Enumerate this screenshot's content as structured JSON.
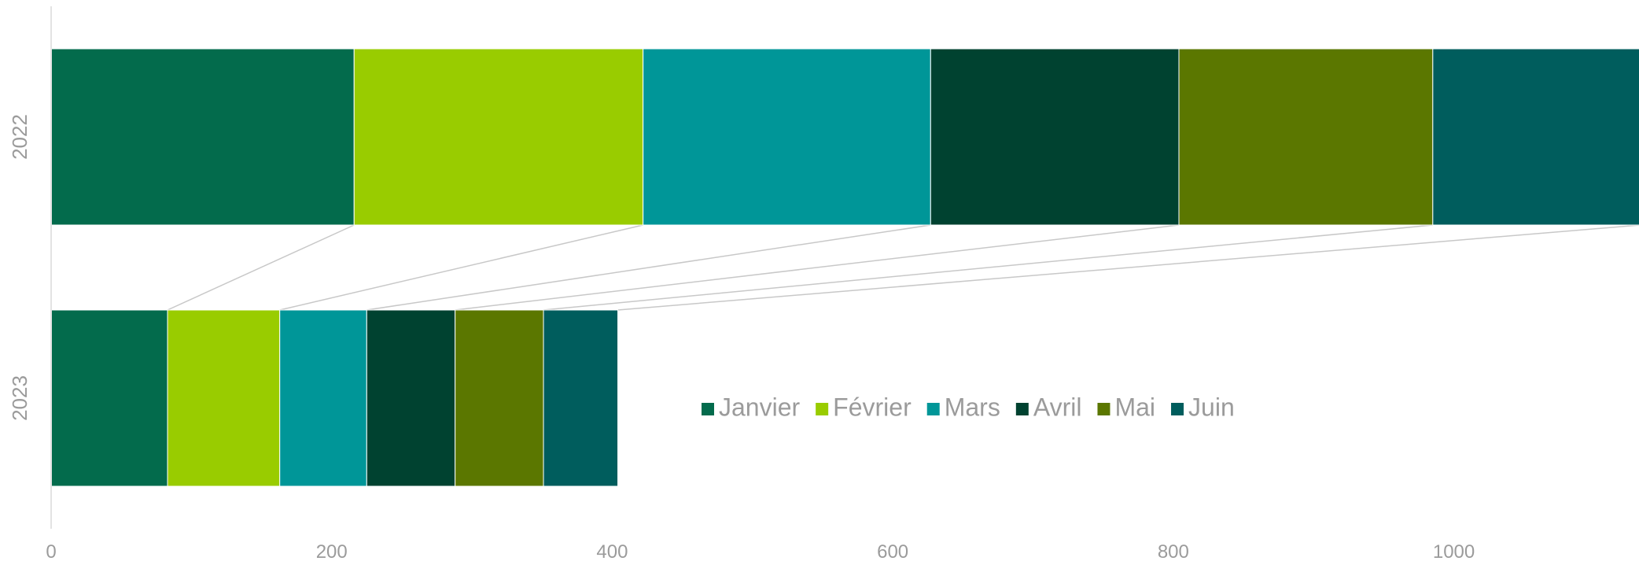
{
  "chart_data": {
    "type": "bar",
    "orientation": "horizontal",
    "stacked": true,
    "categories": [
      "2022",
      "2023"
    ],
    "series": [
      {
        "name": "Janvier",
        "color": "#036b4c",
        "values": [
          216,
          83
        ]
      },
      {
        "name": "Février",
        "color": "#99cc00",
        "values": [
          206,
          80
        ]
      },
      {
        "name": "Mars",
        "color": "#009698",
        "values": [
          205,
          62
        ]
      },
      {
        "name": "Avril",
        "color": "#004230",
        "values": [
          177,
          63
        ]
      },
      {
        "name": "Mai",
        "color": "#5b7700",
        "values": [
          181,
          63
        ]
      },
      {
        "name": "Juin",
        "color": "#005d5d",
        "values": [
          148,
          53
        ]
      }
    ],
    "xlim": [
      0,
      1132
    ],
    "xticks": [
      0,
      200,
      400,
      600,
      800,
      1000
    ],
    "connector_lines": true,
    "grid": false,
    "legend_position": "inside-right"
  }
}
